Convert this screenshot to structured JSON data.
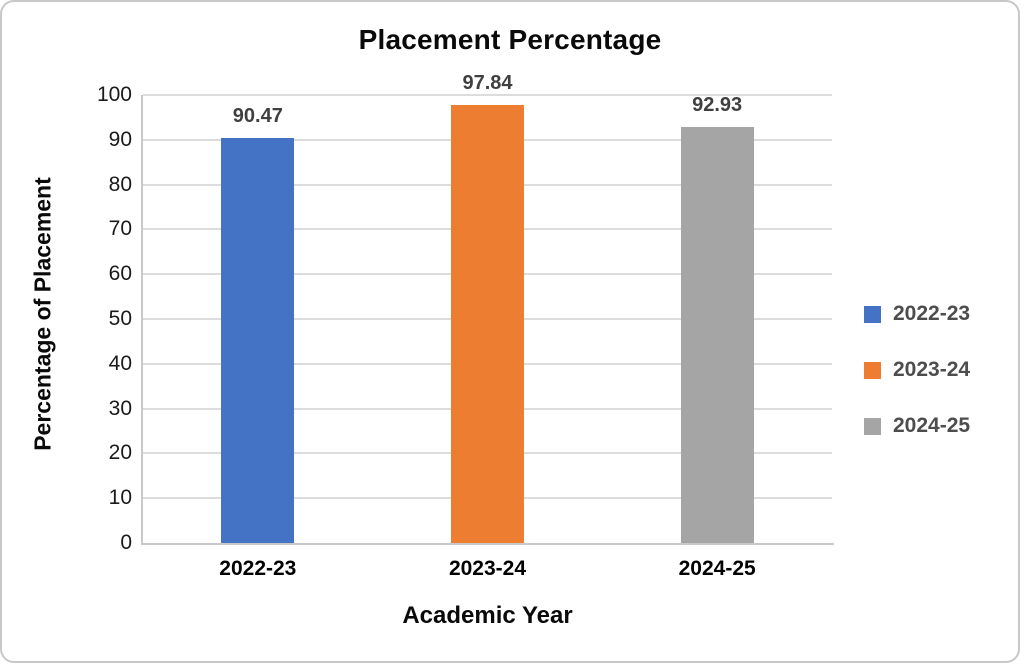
{
  "chart_data": {
    "type": "bar",
    "title": "Placement Percentage",
    "xlabel": "Academic Year",
    "ylabel": "Percentage of Placement",
    "categories": [
      "2022-23",
      "2023-24",
      "2024-25"
    ],
    "values": [
      90.47,
      97.84,
      92.93
    ],
    "data_labels": [
      "90.47",
      "97.84",
      "92.93"
    ],
    "bar_colors": [
      "#4472C4",
      "#ED7D31",
      "#A5A5A5"
    ],
    "ylim": [
      0,
      100
    ],
    "ytick_step": 10,
    "yticks": [
      0,
      10,
      20,
      30,
      40,
      50,
      60,
      70,
      80,
      90,
      100
    ],
    "grid": true,
    "legend_position": "right",
    "legend": [
      {
        "label": "2022-23",
        "color": "#4472C4"
      },
      {
        "label": "2023-24",
        "color": "#ED7D31"
      },
      {
        "label": "2024-25",
        "color": "#A5A5A5"
      }
    ],
    "style": {
      "gridline_color": "#dcdcdc",
      "axis_line_color": "#c9c9c9",
      "data_label_color": "#404040",
      "legend_text_color": "#4d4d4d",
      "title_color": "#0a0a0a"
    }
  }
}
